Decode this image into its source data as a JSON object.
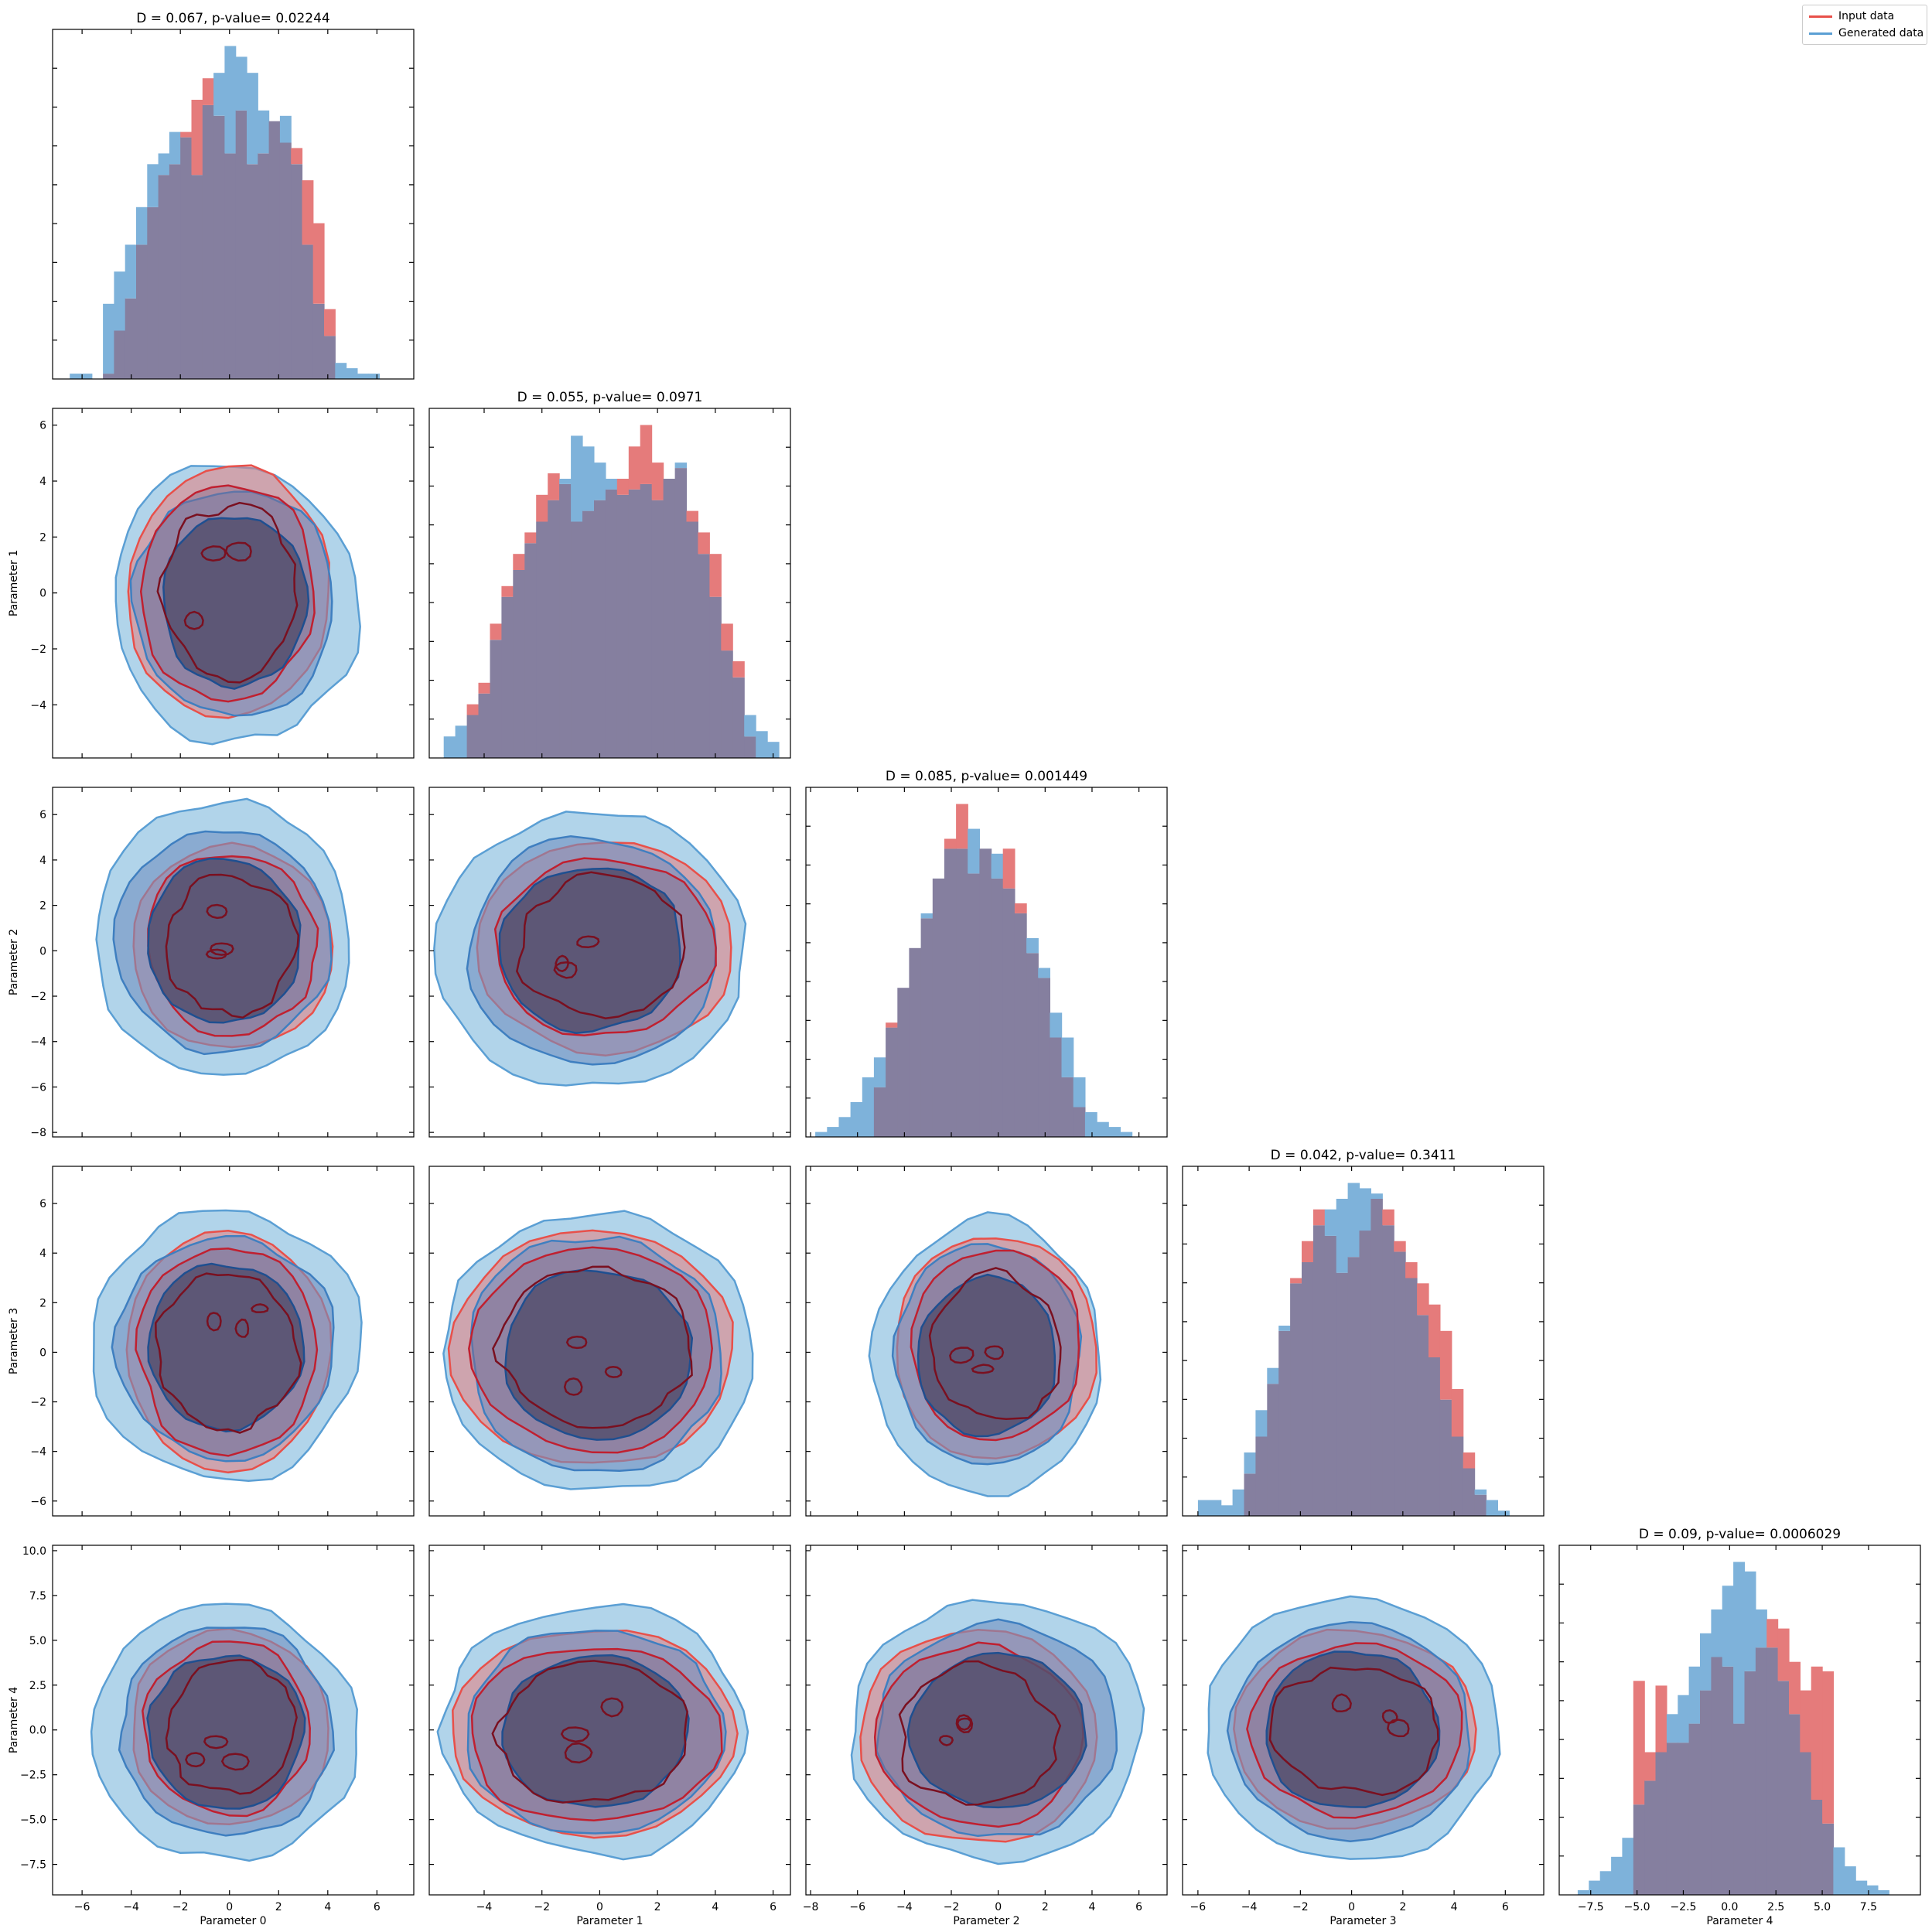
{
  "figure": {
    "type": "corner-plot"
  },
  "legend": {
    "placement": "top-right",
    "items": [
      {
        "label": "Input data",
        "color": "#e8504a"
      },
      {
        "label": "Generated data",
        "color": "#5b9fd4"
      }
    ]
  },
  "colors": {
    "input_hist": "#e57b7b",
    "generated_hist": "#7eb2da",
    "overlap_hist": "#857f9f",
    "input_line": "#e8504a",
    "input_dark": "#7a1020",
    "generated_light": "#a9cfe8",
    "generated_mid": "#3f7fc0",
    "generated_dark": "#1f4f90",
    "core": "#55506f"
  },
  "chart_data": {
    "type": "corner",
    "parameters": [
      "Parameter 0",
      "Parameter 1",
      "Parameter 2",
      "Parameter 3",
      "Parameter 4"
    ],
    "diagonal_titles": [
      "D = 0.067, p-value= 0.02244",
      "D = 0.055, p-value= 0.0971",
      "D = 0.085, p-value= 0.001449",
      "D = 0.042, p-value= 0.3411",
      "D = 0.09, p-value= 0.0006029"
    ],
    "axis_ranges": [
      [
        -7.2,
        7.5
      ],
      [
        -5.9,
        6.6
      ],
      [
        -8.2,
        7.2
      ],
      [
        -6.6,
        7.5
      ],
      [
        -9.2,
        10.3
      ]
    ],
    "x_ticks": [
      [
        -6,
        -4,
        -2,
        0,
        2,
        4,
        6
      ],
      [
        -4,
        -2,
        0,
        2,
        4,
        6
      ],
      [
        -8,
        -6,
        -4,
        -2,
        0,
        2,
        4,
        6
      ],
      [
        -6,
        -4,
        -2,
        0,
        2,
        4,
        6
      ],
      [
        -7.5,
        -5.0,
        -2.5,
        0.0,
        2.5,
        5.0,
        7.5
      ]
    ],
    "x_tick_labels": [
      [
        "−6",
        "−4",
        "−2",
        "0",
        "2",
        "4",
        "6"
      ],
      [
        "−4",
        "−2",
        "0",
        "2",
        "4",
        "6"
      ],
      [
        "−8",
        "−6",
        "−4",
        "−2",
        "0",
        "2",
        "4",
        "6"
      ],
      [
        "−6",
        "−4",
        "−2",
        "0",
        "2",
        "4",
        "6"
      ],
      [
        "−7.5",
        "−5.0",
        "−2.5",
        "0.0",
        "2.5",
        "5.0",
        "7.5"
      ]
    ],
    "y_ticks": [
      null,
      [
        -4,
        -2,
        0,
        2,
        4,
        6
      ],
      [
        -8,
        -6,
        -4,
        -2,
        0,
        2,
        4,
        6
      ],
      [
        -6,
        -4,
        -2,
        0,
        2,
        4,
        6
      ],
      [
        -7.5,
        -5.0,
        -2.5,
        0.0,
        2.5,
        5.0,
        7.5,
        10.0
      ]
    ],
    "y_tick_labels": [
      null,
      [
        "−4",
        "−2",
        "0",
        "2",
        "4",
        "6"
      ],
      [
        "−8",
        "−6",
        "−4",
        "−2",
        "0",
        "2",
        "4",
        "6"
      ],
      [
        "−6",
        "−4",
        "−2",
        "0",
        "2",
        "4",
        "6"
      ],
      [
        "−7.5",
        "−5.0",
        "−2.5",
        "0.0",
        "2.5",
        "5.0",
        "7.5",
        "10.0"
      ]
    ],
    "histograms": [
      {
        "param": 0,
        "x_start": -6.5,
        "bin_width": 0.45,
        "input": [
          0,
          0,
          0,
          1,
          9,
          15,
          25,
          32,
          38,
          40,
          46,
          52,
          56,
          49,
          42,
          50,
          40,
          42,
          48,
          44,
          43,
          37,
          29,
          13,
          0,
          0,
          0,
          0,
          0,
          0
        ],
        "generated": [
          1,
          1,
          0,
          14,
          20,
          25,
          32,
          40,
          42,
          46,
          45,
          38,
          51,
          57,
          62,
          60,
          57,
          50,
          48,
          49,
          40,
          25,
          14,
          8,
          3,
          2,
          1,
          1,
          0,
          0
        ]
      },
      {
        "param": 1,
        "x_start": -5.4,
        "bin_width": 0.4,
        "input": [
          0,
          0,
          10,
          14,
          25,
          32,
          38,
          42,
          49,
          53,
          51,
          44,
          46,
          48,
          50,
          52,
          58,
          62,
          55,
          52,
          54,
          46,
          42,
          38,
          25,
          18,
          4,
          0,
          0
        ],
        "generated": [
          4,
          6,
          8,
          12,
          22,
          30,
          35,
          40,
          44,
          48,
          52,
          60,
          58,
          55,
          52,
          49,
          50,
          51,
          48,
          52,
          55,
          44,
          38,
          30,
          20,
          15,
          8,
          5,
          3
        ]
      },
      {
        "param": 2,
        "x_start": -7.8,
        "bin_width": 0.5,
        "input": [
          0,
          0,
          0,
          0,
          0,
          10,
          23,
          30,
          38,
          44,
          52,
          60,
          67,
          53,
          58,
          52,
          58,
          47,
          37,
          32,
          20,
          12,
          6,
          0,
          0,
          0,
          0,
          0,
          0,
          0
        ],
        "generated": [
          1,
          2,
          4,
          7,
          12,
          16,
          22,
          30,
          38,
          45,
          52,
          58,
          58,
          62,
          58,
          57,
          50,
          45,
          40,
          34,
          25,
          20,
          12,
          5,
          3,
          2,
          1,
          0,
          0,
          0
        ]
      },
      {
        "param": 3,
        "x_start": -6.0,
        "bin_width": 0.45,
        "input": [
          0,
          0,
          0,
          0,
          8,
          15,
          25,
          35,
          45,
          52,
          58,
          53,
          46,
          49,
          54,
          60,
          58,
          52,
          48,
          44,
          40,
          35,
          24,
          12,
          4,
          0,
          0,
          0,
          0,
          0
        ],
        "generated": [
          3,
          3,
          2,
          5,
          12,
          20,
          28,
          36,
          44,
          48,
          55,
          58,
          60,
          63,
          62,
          61,
          55,
          50,
          45,
          38,
          30,
          22,
          15,
          9,
          5,
          3,
          1,
          0,
          0,
          0
        ]
      },
      {
        "param": 4,
        "x_start": -8.8,
        "bin_width": 0.6,
        "input": [
          0,
          0,
          0,
          0,
          0,
          0,
          45,
          30,
          44,
          32,
          32,
          36,
          43,
          50,
          48,
          36,
          47,
          52,
          58,
          56,
          49,
          43,
          48,
          47,
          0,
          0,
          0,
          0,
          0,
          0
        ],
        "generated": [
          0,
          1,
          3,
          5,
          8,
          12,
          19,
          24,
          30,
          38,
          42,
          48,
          55,
          60,
          65,
          70,
          68,
          60,
          52,
          45,
          38,
          30,
          20,
          15,
          10,
          6,
          3,
          2,
          1,
          0
        ]
      }
    ],
    "pair_contours": [
      {
        "x_param": 0,
        "y_param": 1,
        "input_extent": [
          [
            -4.2,
            4.1
          ],
          [
            -4.5,
            4.6
          ]
        ],
        "generated_extent": [
          [
            -4.8,
            5.2
          ],
          [
            -5.3,
            4.7
          ]
        ]
      },
      {
        "x_param": 0,
        "y_param": 2,
        "input_extent": [
          [
            -4.0,
            4.2
          ],
          [
            -4.4,
            4.8
          ]
        ],
        "generated_extent": [
          [
            -5.5,
            5.0
          ],
          [
            -5.5,
            6.5
          ]
        ]
      },
      {
        "x_param": 1,
        "y_param": 2,
        "input_extent": [
          [
            -4.2,
            4.6
          ],
          [
            -4.5,
            4.8
          ]
        ],
        "generated_extent": [
          [
            -5.5,
            5.0
          ],
          [
            -6.0,
            6.2
          ]
        ]
      },
      {
        "x_param": 0,
        "y_param": 3,
        "input_extent": [
          [
            -4.3,
            4.2
          ],
          [
            -4.7,
            4.9
          ]
        ],
        "generated_extent": [
          [
            -5.5,
            5.2
          ],
          [
            -5.3,
            5.7
          ]
        ]
      },
      {
        "x_param": 1,
        "y_param": 3,
        "input_extent": [
          [
            -5.2,
            4.7
          ],
          [
            -4.6,
            4.9
          ]
        ],
        "generated_extent": [
          [
            -5.5,
            5.3
          ],
          [
            -5.8,
            5.7
          ]
        ]
      },
      {
        "x_param": 2,
        "y_param": 3,
        "input_extent": [
          [
            -4.4,
            4.2
          ],
          [
            -4.3,
            4.7
          ]
        ],
        "generated_extent": [
          [
            -5.3,
            4.4
          ],
          [
            -5.6,
            5.3
          ]
        ]
      },
      {
        "x_param": 0,
        "y_param": 4,
        "input_extent": [
          [
            -4.0,
            4.0
          ],
          [
            -5.4,
            5.6
          ]
        ],
        "generated_extent": [
          [
            -5.5,
            5.2
          ],
          [
            -7.2,
            7.0
          ]
        ]
      },
      {
        "x_param": 1,
        "y_param": 4,
        "input_extent": [
          [
            -5.2,
            4.8
          ],
          [
            -6.0,
            5.6
          ]
        ],
        "generated_extent": [
          [
            -5.6,
            5.3
          ],
          [
            -7.2,
            7.0
          ]
        ]
      },
      {
        "x_param": 2,
        "y_param": 4,
        "input_extent": [
          [
            -6.0,
            4.3
          ],
          [
            -6.3,
            5.5
          ]
        ],
        "generated_extent": [
          [
            -6.2,
            6.2
          ],
          [
            -7.4,
            7.2
          ]
        ]
      },
      {
        "x_param": 3,
        "y_param": 4,
        "input_extent": [
          [
            -4.7,
            5.0
          ],
          [
            -5.5,
            5.6
          ]
        ],
        "generated_extent": [
          [
            -5.8,
            5.7
          ],
          [
            -7.3,
            7.2
          ]
        ]
      }
    ]
  }
}
